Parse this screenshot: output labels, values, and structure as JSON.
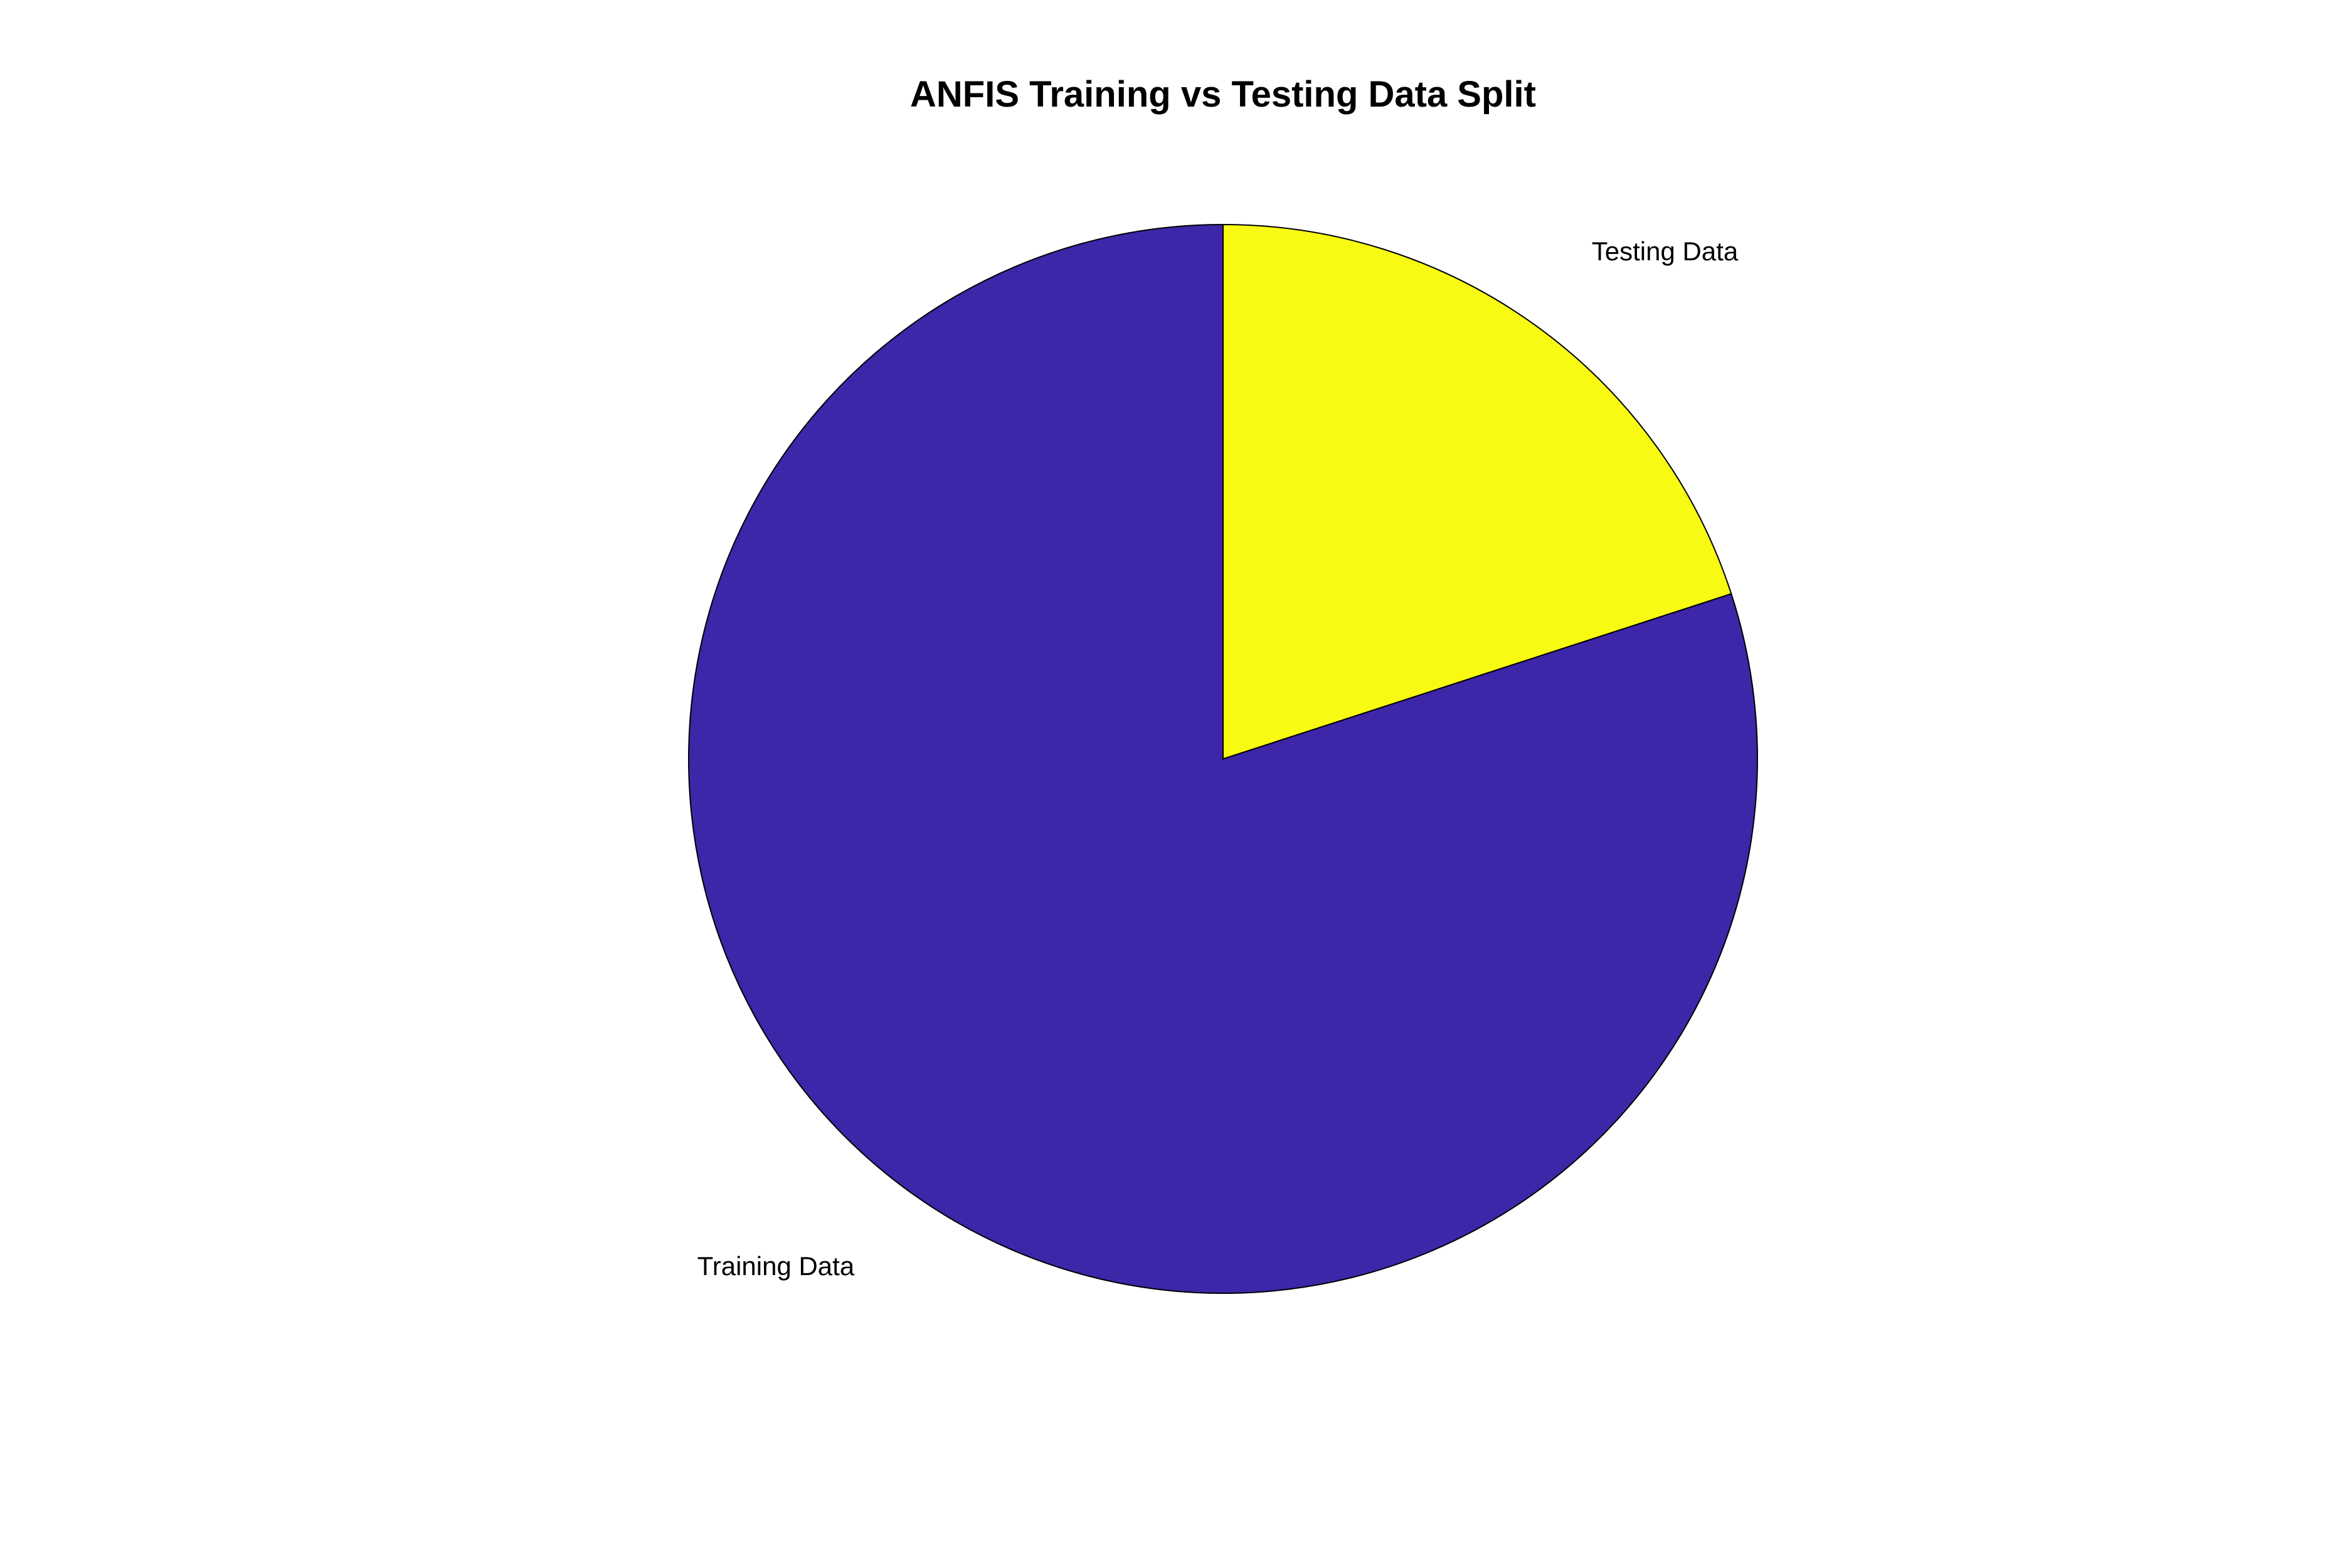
{
  "chart_data": {
    "type": "pie",
    "title": "ANFIS Training vs Testing Data Split",
    "slices": [
      {
        "label": "Training Data",
        "value": 80,
        "color": "#3D26A8"
      },
      {
        "label": "Testing Data",
        "value": 20,
        "color": "#F8FA14"
      }
    ],
    "start_angle_deg": 90,
    "direction": "counterclockwise",
    "legend": "none"
  }
}
